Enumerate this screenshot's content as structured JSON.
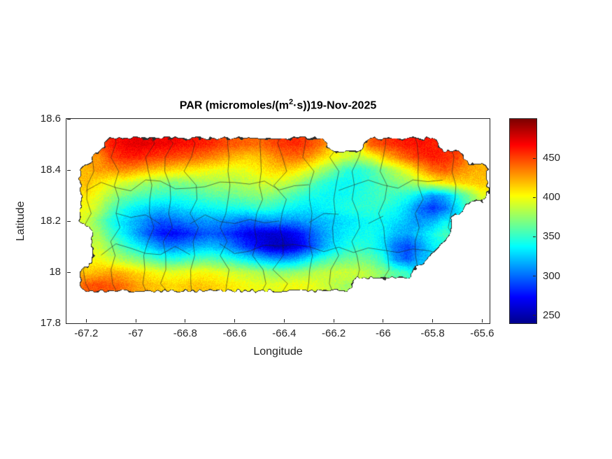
{
  "figure": {
    "title": {
      "prefix": "PAR (micromoles/(m",
      "sup": "2",
      "suffix": "·s))19-Nov-2025"
    },
    "xlabel": "Longitude",
    "ylabel": "Latitude"
  },
  "chart_data": {
    "type": "heatmap",
    "title": "PAR (micromoles/(m^2·s))19-Nov-2025",
    "xlabel": "Longitude",
    "ylabel": "Latitude",
    "xlim": [
      -67.28,
      -65.57
    ],
    "ylim": [
      17.8,
      18.6
    ],
    "xticks": [
      -67.2,
      -67,
      -66.8,
      -66.6,
      -66.4,
      -66.2,
      -66,
      -65.8,
      -65.6
    ],
    "xtick_labels": [
      "-67.2",
      "-67",
      "-66.8",
      "-66.6",
      "-66.4",
      "-66.2",
      "-66",
      "-65.8",
      "-65.6"
    ],
    "yticks": [
      17.8,
      18,
      18.2,
      18.4,
      18.6
    ],
    "ytick_labels": [
      "17.8",
      "18",
      "18.2",
      "18.4",
      "18.6"
    ],
    "grid_lines": false,
    "legend": null,
    "colormap": "jet",
    "colormap_stops": [
      [
        0,
        "#00008f"
      ],
      [
        0.125,
        "#0000ff"
      ],
      [
        0.375,
        "#00ffff"
      ],
      [
        0.625,
        "#ffff00"
      ],
      [
        0.875,
        "#ff0000"
      ],
      [
        1,
        "#7f0000"
      ]
    ],
    "clim": [
      240,
      500
    ],
    "colorbar_ticks": [
      250,
      300,
      350,
      400,
      450
    ],
    "municipal_boundaries": true,
    "grid": {
      "units": "micromoles/(m^2 s)",
      "lon_start": -67.25,
      "lon_step": 0.05,
      "lat_start": 18.5,
      "lat_step": -0.05,
      "values": [
        [
          null,
          null,
          null,
          460,
          470,
          475,
          472,
          470,
          468,
          465,
          462,
          458,
          450,
          445,
          442,
          440,
          448,
          455,
          458,
          450,
          440,
          null,
          null,
          null,
          445,
          452,
          458,
          462,
          465,
          460,
          null,
          null,
          null,
          null
        ],
        [
          null,
          null,
          430,
          450,
          458,
          460,
          455,
          450,
          448,
          445,
          440,
          435,
          428,
          420,
          415,
          418,
          428,
          438,
          440,
          430,
          415,
          400,
          390,
          385,
          395,
          415,
          430,
          445,
          455,
          462,
          458,
          450,
          null,
          null
        ],
        [
          null,
          420,
          428,
          430,
          432,
          428,
          420,
          415,
          412,
          408,
          405,
          400,
          398,
          395,
          398,
          405,
          412,
          415,
          408,
          395,
          380,
          365,
          350,
          345,
          355,
          370,
          385,
          400,
          420,
          440,
          445,
          435,
          425,
          420
        ],
        [
          null,
          420,
          408,
          398,
          392,
          385,
          378,
          372,
          370,
          372,
          375,
          378,
          380,
          382,
          385,
          390,
          392,
          388,
          378,
          365,
          352,
          342,
          338,
          342,
          350,
          360,
          368,
          375,
          385,
          398,
          408,
          412,
          415,
          418
        ],
        [
          null,
          408,
          395,
          380,
          368,
          360,
          355,
          350,
          348,
          350,
          355,
          360,
          362,
          365,
          368,
          372,
          370,
          362,
          352,
          345,
          340,
          338,
          340,
          345,
          350,
          355,
          352,
          345,
          330,
          310,
          320,
          345,
          370,
          395
        ],
        [
          null,
          400,
          385,
          362,
          345,
          335,
          328,
          322,
          325,
          330,
          335,
          338,
          340,
          342,
          345,
          350,
          348,
          340,
          335,
          332,
          335,
          340,
          345,
          348,
          350,
          348,
          340,
          325,
          300,
          285,
          300,
          330,
          null,
          null
        ],
        [
          null,
          390,
          368,
          345,
          330,
          318,
          305,
          295,
          298,
          305,
          310,
          312,
          310,
          305,
          300,
          305,
          310,
          308,
          310,
          315,
          320,
          325,
          330,
          335,
          340,
          338,
          330,
          320,
          310,
          318,
          335,
          null,
          null,
          null
        ],
        [
          null,
          null,
          380,
          355,
          335,
          315,
          295,
          278,
          272,
          278,
          288,
          295,
          290,
          280,
          268,
          262,
          258,
          262,
          272,
          290,
          310,
          325,
          335,
          340,
          342,
          335,
          320,
          315,
          325,
          340,
          355,
          null,
          null,
          null
        ],
        [
          null,
          null,
          390,
          372,
          355,
          340,
          325,
          310,
          305,
          310,
          318,
          322,
          315,
          300,
          285,
          270,
          255,
          252,
          262,
          285,
          310,
          330,
          342,
          348,
          345,
          330,
          300,
          290,
          310,
          335,
          null,
          null,
          null,
          null
        ],
        [
          null,
          null,
          400,
          390,
          380,
          372,
          362,
          352,
          348,
          352,
          358,
          360,
          355,
          345,
          335,
          325,
          315,
          312,
          320,
          335,
          350,
          360,
          365,
          368,
          362,
          348,
          310,
          295,
          320,
          null,
          null,
          null,
          null,
          null
        ],
        [
          null,
          415,
          420,
          425,
          420,
          412,
          405,
          398,
          395,
          398,
          402,
          400,
          395,
          390,
          385,
          380,
          375,
          372,
          375,
          380,
          385,
          388,
          390,
          388,
          382,
          372,
          360,
          350,
          null,
          null,
          null,
          null,
          null,
          null
        ],
        [
          null,
          445,
          448,
          445,
          438,
          428,
          420,
          415,
          412,
          415,
          418,
          415,
          410,
          405,
          400,
          398,
          395,
          398,
          400,
          398,
          392,
          385,
          378,
          null,
          null,
          null,
          null,
          null,
          null,
          null,
          null,
          null,
          null,
          null
        ]
      ]
    }
  }
}
